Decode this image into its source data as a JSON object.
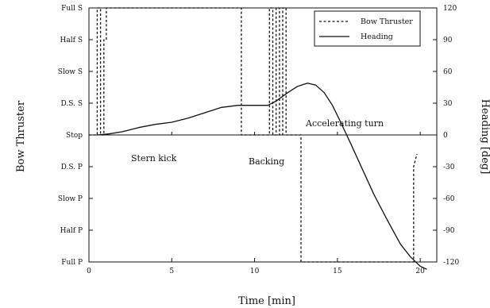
{
  "chart_data": {
    "type": "line",
    "xlabel": "Time [min]",
    "ylabel_left": "Bow Thruster",
    "ylabel_right": "Heading [deg]",
    "xlim": [
      0,
      21
    ],
    "xticks": [
      0,
      5,
      10,
      15,
      20
    ],
    "ylim_left": [
      -4,
      4
    ],
    "left_tick_labels": [
      "Full P",
      "Half P",
      "Slow P",
      "D.S. P",
      "Stop",
      "D.S. S",
      "Slow S",
      "Half S",
      "Full S"
    ],
    "ylim_right": [
      -120,
      120
    ],
    "right_ticks": [
      -120,
      -90,
      -60,
      -30,
      0,
      30,
      60,
      90,
      120
    ],
    "legend": {
      "position": "top-right",
      "entries": [
        "Bow Thruster",
        "Heading"
      ]
    },
    "annotations": [
      "Stern kick",
      "Backing",
      "Accelerating turn"
    ],
    "series": [
      {
        "name": "Bow Thruster",
        "axis": "left",
        "style": "dashed",
        "x": [
          0,
          0.5,
          0.5,
          0.7,
          0.7,
          0.9,
          0.9,
          1.05,
          1.05,
          9.2,
          9.2,
          10.9,
          10.9,
          11.1,
          11.1,
          11.3,
          11.3,
          11.5,
          11.5,
          11.7,
          11.7,
          11.9,
          11.9,
          12.8,
          12.8,
          19.6,
          19.6,
          19.8
        ],
        "y": [
          0,
          0,
          4,
          4,
          0,
          0,
          3,
          3,
          4,
          4,
          0,
          0,
          4,
          4,
          0,
          0,
          4,
          4,
          0,
          0,
          4,
          4,
          0,
          0,
          -4,
          -4,
          -1,
          -0.6
        ]
      },
      {
        "name": "Heading",
        "axis": "right",
        "style": "solid",
        "x": [
          0.5,
          1.2,
          2.0,
          3.0,
          4.0,
          5.0,
          6.0,
          7.0,
          8.0,
          9.0,
          10.0,
          10.8,
          11.3,
          12.0,
          12.6,
          13.2,
          13.7,
          14.2,
          14.7,
          15.2,
          15.8,
          16.5,
          17.2,
          18.0,
          18.8,
          19.4,
          20.0,
          20.4
        ],
        "y": [
          0,
          1,
          3,
          7,
          10,
          12,
          16,
          21,
          26,
          28,
          28,
          28,
          32,
          40,
          46,
          49,
          47,
          40,
          28,
          12,
          -8,
          -32,
          -56,
          -80,
          -103,
          -115,
          -124,
          -127
        ]
      }
    ]
  }
}
